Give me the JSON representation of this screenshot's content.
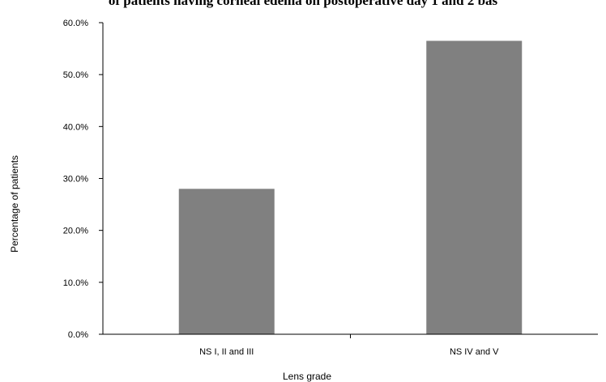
{
  "chart_data": {
    "type": "bar",
    "title": "of patients having corneal edema on postoperative day 1 and 2 bas",
    "categories": [
      "NS I, II and III",
      "NS IV and V"
    ],
    "series": [
      {
        "values": [
          28.0,
          56.5
        ]
      }
    ],
    "xlabel": "Lens grade",
    "ylabel": "Percentage of patients",
    "ylim": [
      0,
      60
    ],
    "yticks": [
      "0.0%",
      "10.0%",
      "20.0%",
      "30.0%",
      "40.0%",
      "50.0%",
      "60.0%"
    ],
    "grid": false,
    "legend": "none",
    "colors": {
      "bar": "#808080",
      "axis": "#000000",
      "background": "#ffffff"
    }
  }
}
